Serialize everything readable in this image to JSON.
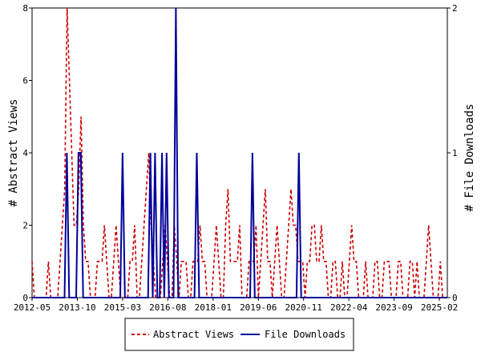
{
  "chart_data": {
    "type": "line",
    "title": "",
    "xlabel": "",
    "ylabel_left": "# Abstract Views",
    "ylabel_right": "# File Downloads",
    "x_tick_labels": [
      "2012-05",
      "2013-10",
      "2015-03",
      "2016-08",
      "2018-01",
      "2019-06",
      "2020-11",
      "2022-04",
      "2023-09",
      "2025-02"
    ],
    "y_left_ticks": [
      "0",
      "2",
      "4",
      "6",
      "8"
    ],
    "y_right_ticks": [
      "0",
      "1",
      "2"
    ],
    "ylim_left": [
      0,
      8
    ],
    "ylim_right": [
      0,
      2
    ],
    "legend_placement": "bottom-center",
    "x_start": "2012-05",
    "x_end": "2025-05",
    "grid": false,
    "colors": {
      "abstract_views": "#cc0000",
      "file_downloads": "#000099"
    },
    "series": [
      {
        "name": "Abstract Views",
        "axis": "left",
        "style": "dashed",
        "values": [
          1,
          0,
          0,
          0,
          0,
          0,
          0,
          1,
          0,
          0,
          0,
          0,
          1,
          2,
          3,
          8,
          6,
          4,
          2,
          2,
          3,
          5,
          2,
          1,
          1,
          0,
          0,
          0,
          1,
          1,
          1,
          2,
          1,
          0,
          0,
          1,
          2,
          1,
          0,
          0,
          0,
          0,
          1,
          1,
          2,
          0,
          0,
          1,
          2,
          3,
          4,
          2,
          1,
          0,
          0,
          0,
          1,
          2,
          1,
          0,
          0,
          2,
          1,
          0,
          1,
          1,
          1,
          0,
          0,
          1,
          1,
          1,
          2,
          1,
          1,
          0,
          0,
          0,
          1,
          2,
          1,
          0,
          0,
          2,
          3,
          1,
          1,
          1,
          1,
          2,
          0,
          0,
          0,
          1,
          1,
          1,
          2,
          0,
          1,
          2,
          3,
          1,
          1,
          0,
          1,
          2,
          1,
          0,
          0,
          1,
          2,
          3,
          2,
          2,
          1,
          1,
          1,
          0,
          1,
          1,
          2,
          2,
          1,
          1,
          2,
          1,
          1,
          0,
          0,
          1,
          1,
          0,
          0,
          1,
          0,
          0,
          1,
          2,
          1,
          1,
          0,
          0,
          0,
          1,
          0,
          0,
          0,
          1,
          1,
          0,
          0,
          1,
          1,
          1,
          0,
          0,
          0,
          1,
          1,
          0,
          0,
          0,
          1,
          1,
          0,
          1,
          0,
          0,
          0,
          1,
          2,
          1,
          0,
          0,
          0,
          1,
          0,
          0,
          0
        ]
      },
      {
        "name": "File Downloads",
        "axis": "right",
        "style": "solid",
        "values": [
          0,
          0,
          0,
          0,
          0,
          0,
          0,
          0,
          0,
          0,
          0,
          0,
          0,
          0,
          0,
          1,
          0,
          0,
          0,
          0,
          1,
          1,
          0,
          0,
          0,
          0,
          0,
          0,
          0,
          0,
          0,
          0,
          0,
          0,
          0,
          0,
          0,
          0,
          0,
          1,
          0,
          0,
          0,
          0,
          0,
          0,
          0,
          0,
          0,
          0,
          0,
          1,
          0,
          1,
          0,
          0,
          1,
          0,
          1,
          0,
          0,
          0,
          2,
          0,
          0,
          0,
          0,
          0,
          0,
          0,
          0,
          1,
          0,
          0,
          0,
          0,
          0,
          0,
          0,
          0,
          0,
          0,
          0,
          0,
          0,
          0,
          0,
          0,
          0,
          0,
          0,
          0,
          0,
          0,
          0,
          1,
          0,
          0,
          0,
          0,
          0,
          0,
          0,
          0,
          0,
          0,
          0,
          0,
          0,
          0,
          0,
          0,
          0,
          0,
          0,
          1,
          0,
          0,
          0,
          0,
          0,
          0,
          0,
          0,
          0,
          0,
          0,
          0,
          0,
          0,
          0,
          0,
          0,
          0,
          0,
          0,
          0,
          0,
          0,
          0,
          0,
          0,
          0,
          0,
          0,
          0,
          0,
          0,
          0,
          0,
          0,
          0,
          0,
          0,
          0,
          0,
          0,
          0,
          0,
          0,
          0,
          0,
          0,
          0,
          0,
          0,
          0,
          0,
          0,
          0,
          0,
          0,
          0,
          0,
          0,
          0,
          0,
          0,
          0,
          0
        ]
      }
    ]
  }
}
